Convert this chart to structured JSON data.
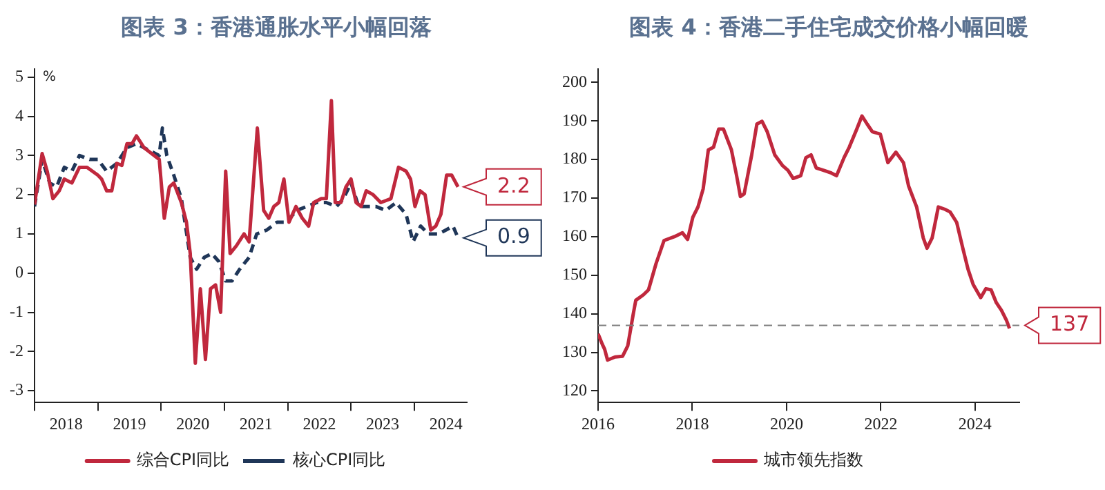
{
  "chart_data": [
    {
      "type": "line",
      "title": "图表 3：香港通胀水平小幅回落",
      "ylabel": "%",
      "legend": "bottom",
      "marker": "none",
      "grid": false,
      "xlim": [
        2018,
        2024.83
      ],
      "ylim": [
        -3.3,
        5.2
      ],
      "yticks": [
        -3,
        -2,
        -1,
        0,
        1,
        2,
        3,
        4,
        5
      ],
      "xticks": [
        {
          "value": 2018,
          "label": null
        },
        {
          "value": 2018.5,
          "label": "2018"
        },
        {
          "value": 2019,
          "label": null
        },
        {
          "value": 2019.5,
          "label": "2019"
        },
        {
          "value": 2020,
          "label": null
        },
        {
          "value": 2020.5,
          "label": "2020"
        },
        {
          "value": 2021,
          "label": null
        },
        {
          "value": 2021.5,
          "label": "2021"
        },
        {
          "value": 2022,
          "label": null
        },
        {
          "value": 2022.5,
          "label": "2022"
        },
        {
          "value": 2023,
          "label": null
        },
        {
          "value": 2023.5,
          "label": "2023"
        },
        {
          "value": 2024,
          "label": null
        },
        {
          "value": 2024.5,
          "label": "2024"
        }
      ],
      "series": [
        {
          "name": "综合CPI同比",
          "color": "#c0283d",
          "line_style": "solid",
          "x": [
            2018.0,
            2018.12,
            2018.2,
            2018.29,
            2018.39,
            2018.47,
            2018.59,
            2018.71,
            2018.83,
            2019.0,
            2019.06,
            2019.14,
            2019.22,
            2019.3,
            2019.38,
            2019.46,
            2019.54,
            2019.61,
            2019.73,
            2019.97,
            2020.05,
            2020.13,
            2020.2,
            2020.32,
            2020.4,
            2020.46,
            2020.54,
            2020.62,
            2020.7,
            2020.78,
            2020.86,
            2020.94,
            2021.02,
            2021.09,
            2021.19,
            2021.31,
            2021.39,
            2021.52,
            2021.62,
            2021.7,
            2021.78,
            2021.86,
            2021.94,
            2022.02,
            2022.13,
            2022.23,
            2022.33,
            2022.41,
            2022.53,
            2022.61,
            2022.69,
            2022.75,
            2022.84,
            2022.92,
            2023.0,
            2023.08,
            2023.16,
            2023.24,
            2023.35,
            2023.47,
            2023.63,
            2023.75,
            2023.87,
            2023.94,
            2024.01,
            2024.09,
            2024.17,
            2024.26,
            2024.34,
            2024.42,
            2024.51,
            2024.59,
            2024.69
          ],
          "values": [
            1.75,
            3.05,
            2.6,
            1.9,
            2.1,
            2.4,
            2.3,
            2.7,
            2.7,
            2.5,
            2.4,
            2.1,
            2.1,
            2.8,
            2.75,
            3.3,
            3.3,
            3.5,
            3.2,
            2.9,
            1.4,
            2.2,
            2.3,
            1.8,
            1.3,
            0.5,
            -2.3,
            -0.4,
            -2.2,
            -0.4,
            -0.3,
            -1.0,
            2.6,
            0.5,
            0.7,
            1.0,
            0.8,
            3.7,
            1.6,
            1.4,
            1.7,
            1.8,
            2.4,
            1.3,
            1.7,
            1.4,
            1.2,
            1.8,
            1.9,
            1.9,
            4.4,
            1.8,
            1.8,
            2.2,
            2.4,
            1.8,
            1.7,
            2.1,
            2.0,
            1.8,
            1.9,
            2.7,
            2.6,
            2.4,
            1.7,
            2.1,
            2.0,
            1.1,
            1.2,
            1.5,
            2.5,
            2.5,
            2.2
          ]
        },
        {
          "name": "核心CPI同比",
          "color": "#1f3658",
          "line_style": "dashed",
          "x": [
            2018.0,
            2018.12,
            2018.24,
            2018.35,
            2018.47,
            2018.59,
            2018.71,
            2018.87,
            2019.0,
            2019.14,
            2019.3,
            2019.46,
            2019.61,
            2019.73,
            2019.97,
            2020.02,
            2020.09,
            2020.2,
            2020.32,
            2020.46,
            2020.56,
            2020.68,
            2020.8,
            2020.91,
            2021.02,
            2021.12,
            2021.24,
            2021.39,
            2021.51,
            2021.67,
            2021.83,
            2021.98,
            2022.14,
            2022.3,
            2022.46,
            2022.61,
            2022.77,
            2022.88,
            2023.0,
            2023.12,
            2023.24,
            2023.39,
            2023.55,
            2023.71,
            2023.87,
            2023.98,
            2024.1,
            2024.22,
            2024.38,
            2024.5,
            2024.61,
            2024.69
          ],
          "values": [
            1.7,
            2.9,
            2.3,
            2.2,
            2.7,
            2.6,
            3.0,
            2.9,
            2.9,
            2.6,
            2.8,
            3.2,
            3.3,
            3.2,
            3.0,
            3.7,
            3.0,
            2.5,
            1.9,
            0.4,
            0.1,
            0.4,
            0.5,
            0.3,
            -0.2,
            -0.2,
            0.1,
            0.4,
            1.0,
            1.1,
            1.3,
            1.3,
            1.6,
            1.7,
            1.8,
            1.8,
            1.7,
            1.9,
            2.3,
            1.7,
            1.7,
            1.7,
            1.6,
            1.8,
            1.5,
            0.8,
            1.2,
            1.0,
            1.0,
            1.1,
            1.2,
            0.9
          ]
        }
      ],
      "annotations": [
        {
          "text": "2.2",
          "x": 2024.69,
          "y": 2.2
        },
        {
          "text": "0.9",
          "x": 2024.69,
          "y": 0.9
        }
      ]
    },
    {
      "type": "line",
      "title": "图表 4：香港二手住宅成交价格小幅回暖",
      "legend": "bottom",
      "marker": "none",
      "grid": false,
      "xlim": [
        2016,
        2024.94
      ],
      "ylim": [
        117,
        203.4
      ],
      "xticks": [
        2016,
        2018,
        2020,
        2022,
        2024
      ],
      "yticks": [
        120,
        130,
        140,
        150,
        160,
        170,
        180,
        190,
        200
      ],
      "series": [
        {
          "name": "城市领先指数",
          "color": "#c0283d",
          "line_style": "solid",
          "x": [
            2016.0,
            2016.09,
            2016.14,
            2016.2,
            2016.36,
            2016.52,
            2016.63,
            2016.74,
            2016.8,
            2016.96,
            2017.07,
            2017.23,
            2017.4,
            2017.62,
            2017.79,
            2017.9,
            2018.01,
            2018.12,
            2018.23,
            2018.34,
            2018.45,
            2018.56,
            2018.66,
            2018.83,
            2018.94,
            2019.02,
            2019.1,
            2019.26,
            2019.37,
            2019.48,
            2019.59,
            2019.75,
            2019.91,
            2020.03,
            2020.14,
            2020.3,
            2020.41,
            2020.52,
            2020.63,
            2020.79,
            2020.95,
            2021.06,
            2021.22,
            2021.33,
            2021.49,
            2021.6,
            2021.71,
            2021.82,
            2021.99,
            2022.15,
            2022.32,
            2022.48,
            2022.59,
            2022.76,
            2022.9,
            2022.98,
            2023.09,
            2023.22,
            2023.36,
            2023.47,
            2023.61,
            2023.74,
            2023.85,
            2023.96,
            2024.12,
            2024.23,
            2024.34,
            2024.45,
            2024.56,
            2024.67,
            2024.73
          ],
          "values": [
            134.8,
            132.1,
            130.8,
            128,
            128.8,
            129,
            131.7,
            139.5,
            143.5,
            144.9,
            146.2,
            153,
            159,
            160,
            161,
            159.3,
            165,
            167.7,
            172.4,
            182.5,
            183.2,
            187.9,
            187.9,
            182.5,
            175.8,
            170.4,
            171.1,
            181.2,
            189.2,
            189.9,
            187.2,
            181.2,
            178.5,
            177.2,
            175.1,
            175.8,
            180.5,
            181.2,
            177.8,
            177.2,
            176.5,
            175.8,
            180.5,
            183.2,
            187.9,
            191.3,
            189.2,
            187.2,
            186.6,
            179.2,
            181.9,
            179.2,
            173.1,
            167.7,
            159.7,
            157,
            159.7,
            167.7,
            167.1,
            166.4,
            163.7,
            157,
            151.6,
            147.6,
            144.2,
            146.5,
            146.2,
            142.9,
            140.9,
            138.2,
            136.2
          ]
        }
      ],
      "ref_lines": [
        {
          "axis": "y",
          "value": 137,
          "label": "137",
          "color": "#808080",
          "line_style": "dashed"
        }
      ]
    }
  ]
}
